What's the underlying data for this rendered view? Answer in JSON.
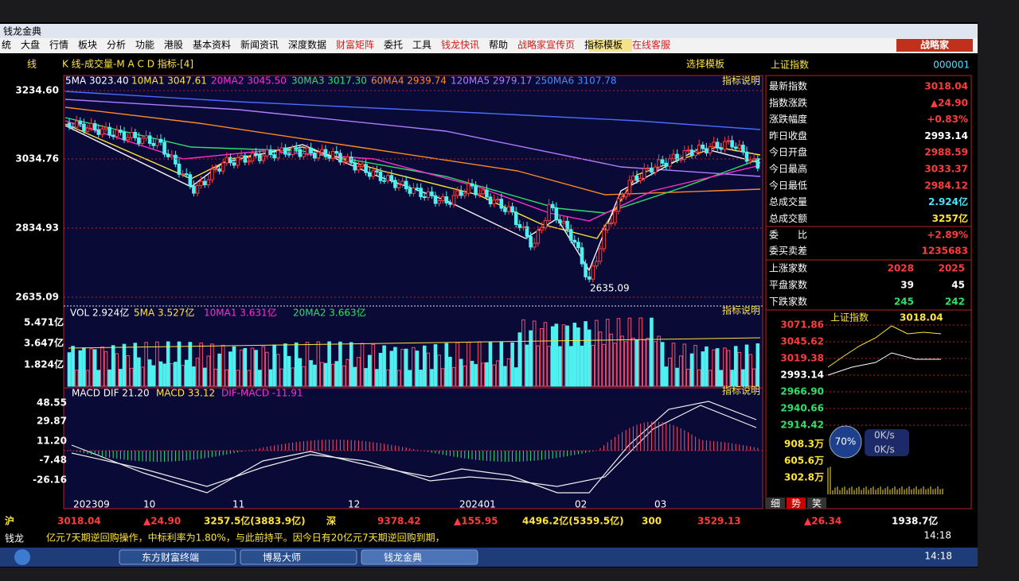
{
  "window": {
    "title": "钱龙金典",
    "brand": "战略家"
  },
  "menu": [
    "统",
    "大盘",
    "行情",
    "板块",
    "分析",
    "功能",
    "港股",
    "基本资料",
    "新闻资讯",
    "深度数据",
    "财富矩阵",
    "委托",
    "工具",
    "钱龙快讯",
    "帮助",
    "战略家宣传页",
    "指标模板",
    "在线客服"
  ],
  "toolbar": {
    "left": "线",
    "title": "K 线-成交量-M A C D 指标-[4]",
    "template": "选择模板",
    "index_name": "上证指数",
    "index_code": "000001"
  },
  "kline": {
    "ma_labels": [
      "5MA 3023.40",
      "10MA1 3047.61",
      "20MA2 3045.50",
      "30MA3 3017.30",
      "60MA4 2939.74",
      "120MA5 2979.17",
      "250MA6 3107.78"
    ],
    "help": "指标说明",
    "y_labels": [
      "3234.60",
      "3034.76",
      "2834.93",
      "2635.09"
    ],
    "low_label": "2635.09"
  },
  "volume": {
    "labels": [
      "VOL 2.924亿",
      "5MA 3.527亿",
      "10MA1 3.631亿",
      "20MA2 3.663亿"
    ],
    "help": "指标说明",
    "y_labels": [
      "5.471亿",
      "3.647亿",
      "1.824亿"
    ]
  },
  "macd": {
    "labels": [
      "MACD DIF 21.20",
      "MACD 33.12",
      "DIF-MACD -11.91"
    ],
    "help": "指标说明",
    "y_labels": [
      "48.55",
      "29.87",
      "11.20",
      "-7.48",
      "-26.16"
    ],
    "x_labels": [
      "202309",
      "10",
      "11",
      "12",
      "202401",
      "02",
      "03"
    ]
  },
  "quote": {
    "rows": [
      [
        "最新指数",
        "3018.04"
      ],
      [
        "指数涨跌",
        "▲24.90"
      ],
      [
        "涨跌幅度",
        "+0.83%"
      ],
      [
        "昨日收盘",
        "2993.14"
      ],
      [
        "今日开盘",
        "2988.59"
      ],
      [
        "今日最高",
        "3033.37"
      ],
      [
        "今日最低",
        "2984.12"
      ],
      [
        "总成交量",
        "2.924亿"
      ],
      [
        "总成交额",
        "3257亿"
      ],
      [
        "委　　比",
        "+2.89%"
      ],
      [
        "委买卖差",
        "1235683"
      ]
    ],
    "breadth": [
      [
        "上涨家数",
        "2028",
        "2025"
      ],
      [
        "平盘家数",
        "39",
        "45"
      ],
      [
        "下跌家数",
        "245",
        "242"
      ]
    ]
  },
  "mini": {
    "title": "上证指数",
    "price": "3018.04",
    "y_labels": [
      "3071.86",
      "3045.62",
      "3019.38",
      "2993.14",
      "2966.90",
      "2940.66",
      "2914.42"
    ],
    "vol_labels": [
      "908.3万",
      "605.6万",
      "302.8万"
    ],
    "gauge": "70%",
    "rates": [
      "0K/s",
      "0K/s"
    ],
    "tabs": [
      "细",
      "势",
      "笑"
    ]
  },
  "status": {
    "items": [
      "沪",
      "3018.04",
      "▲24.90",
      "3257.5亿(3883.9亿)",
      "深",
      "9378.42",
      "▲155.95",
      "4496.2亿(5359.5亿)",
      "300",
      "3529.13",
      "▲26.34",
      "1938.7亿"
    ]
  },
  "ticker": {
    "label": "钱龙",
    "text": "亿元7天期逆回购操作，中标利率为1.80%，与此前持平。因今日有20亿元7天期逆回购到期，",
    "time": "14:18"
  },
  "taskbar": {
    "apps": [
      "东方财富终端",
      "博易大师",
      "钱龙金典"
    ],
    "time": "14:18"
  }
}
